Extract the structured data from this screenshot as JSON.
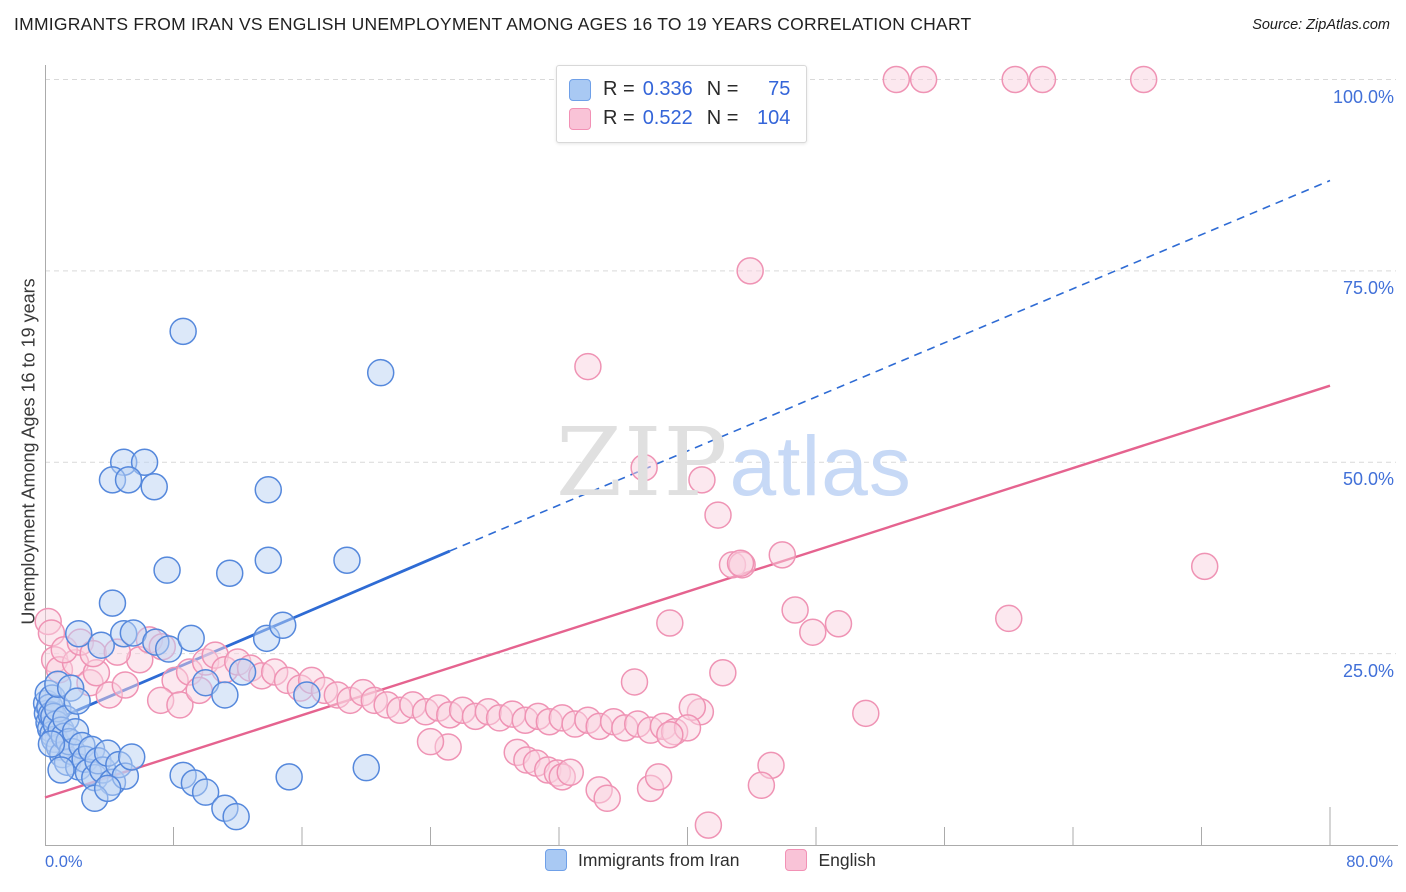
{
  "header": {
    "title": "IMMIGRANTS FROM IRAN VS ENGLISH UNEMPLOYMENT AMONG AGES 16 TO 19 YEARS CORRELATION CHART",
    "source": "Source: ZipAtlas.com"
  },
  "legend_box": {
    "rows": [
      {
        "swatch": "blue",
        "r_label": "R =",
        "r_value": "0.336",
        "n_label": "N =",
        "n_value": "75"
      },
      {
        "swatch": "pink",
        "r_label": "R =",
        "r_value": "0.522",
        "n_label": "N =",
        "n_value": "104"
      }
    ]
  },
  "axes": {
    "y_label": "Unemployment Among Ages 16 to 19 years",
    "y_tick_labels": [
      {
        "text": "100.0%",
        "value": 100
      },
      {
        "text": "75.0%",
        "value": 75
      },
      {
        "text": "50.0%",
        "value": 50
      },
      {
        "text": "25.0%",
        "value": 25
      }
    ],
    "x_left_label": "0.0%",
    "x_right_label": "80.0%"
  },
  "watermark": {
    "zip": "ZIP",
    "atlas": "atlas"
  },
  "bottom_legend": [
    {
      "label": "Immigrants from Iran",
      "swatch": "blue"
    },
    {
      "label": "English",
      "swatch": "pink"
    }
  ],
  "colors": {
    "accent_blue_text": "#3465d9",
    "grid": "#d9d9d9",
    "axis": "#ababab",
    "point_blue_fill": "#b9d2f4",
    "point_blue_stroke": "#5588dc",
    "point_pink_fill": "#fad2e0",
    "point_pink_stroke": "#ef93b4",
    "line_blue": "#2e6bd4",
    "line_pink": "#e5638f"
  },
  "chart_data": {
    "type": "scatter",
    "title": "IMMIGRANTS FROM IRAN VS ENGLISH UNEMPLOYMENT AMONG AGES 16 TO 19 YEARS CORRELATION CHART",
    "xlabel": "",
    "ylabel": "Unemployment Among Ages 16 to 19 years",
    "xlim": [
      0,
      80
    ],
    "ylim": [
      0,
      100
    ],
    "x_unit": "%",
    "y_unit": "%",
    "grid": "dashed-horizontal",
    "gridlines_y": [
      25,
      50,
      75,
      100
    ],
    "legend_position": "top-center",
    "series": [
      {
        "name": "Immigrants from Iran",
        "R": 0.336,
        "N": 75,
        "points": [
          [
            0.1,
            18.5
          ],
          [
            0.15,
            17.2
          ],
          [
            0.2,
            19.8
          ],
          [
            0.25,
            16.0
          ],
          [
            0.3,
            18.0
          ],
          [
            0.35,
            15.2
          ],
          [
            0.4,
            17.0
          ],
          [
            0.45,
            19.2
          ],
          [
            0.5,
            14.5
          ],
          [
            0.55,
            16.8
          ],
          [
            0.6,
            13.8
          ],
          [
            0.7,
            15.8
          ],
          [
            0.8,
            17.8
          ],
          [
            0.9,
            12.8
          ],
          [
            1.0,
            15.0
          ],
          [
            1.1,
            11.8
          ],
          [
            1.2,
            14.2
          ],
          [
            1.3,
            16.5
          ],
          [
            1.4,
            10.8
          ],
          [
            1.5,
            13.5
          ],
          [
            1.7,
            12.2
          ],
          [
            1.9,
            14.8
          ],
          [
            2.1,
            10.2
          ],
          [
            2.3,
            13.0
          ],
          [
            2.5,
            11.2
          ],
          [
            2.7,
            9.5
          ],
          [
            2.9,
            12.5
          ],
          [
            3.1,
            8.8
          ],
          [
            3.3,
            11.0
          ],
          [
            3.6,
            9.8
          ],
          [
            3.9,
            12.0
          ],
          [
            4.2,
            8.2
          ],
          [
            4.6,
            10.5
          ],
          [
            5.0,
            9.0
          ],
          [
            5.4,
            11.5
          ],
          [
            0.8,
            21.0
          ],
          [
            1.6,
            20.5
          ],
          [
            2.0,
            18.8
          ],
          [
            0.4,
            13.2
          ],
          [
            1.0,
            9.8
          ],
          [
            2.1,
            27.6
          ],
          [
            3.5,
            26.1
          ],
          [
            4.9,
            27.6
          ],
          [
            5.5,
            27.7
          ],
          [
            6.9,
            26.5
          ],
          [
            7.7,
            25.6
          ],
          [
            9.1,
            27.0
          ],
          [
            13.8,
            27.0
          ],
          [
            14.8,
            28.7
          ],
          [
            12.3,
            22.6
          ],
          [
            10.0,
            21.2
          ],
          [
            11.2,
            19.6
          ],
          [
            4.2,
            31.6
          ],
          [
            7.6,
            35.9
          ],
          [
            11.5,
            35.5
          ],
          [
            13.9,
            37.2
          ],
          [
            18.8,
            37.2
          ],
          [
            16.3,
            19.6
          ],
          [
            20.0,
            10.1
          ],
          [
            15.2,
            8.9
          ],
          [
            8.6,
            67.1
          ],
          [
            20.9,
            61.7
          ],
          [
            4.9,
            50.0
          ],
          [
            6.2,
            50.0
          ],
          [
            4.2,
            47.7
          ],
          [
            5.2,
            47.7
          ],
          [
            6.8,
            46.8
          ],
          [
            13.9,
            46.4
          ],
          [
            3.1,
            6.1
          ],
          [
            3.9,
            7.4
          ],
          [
            8.6,
            9.1
          ],
          [
            9.3,
            8.1
          ],
          [
            10.0,
            6.9
          ],
          [
            11.2,
            4.8
          ],
          [
            11.9,
            3.7
          ]
        ]
      },
      {
        "name": "English",
        "R": 0.522,
        "N": 104,
        "points": [
          [
            46.1,
            100
          ],
          [
            53.0,
            100
          ],
          [
            54.7,
            100
          ],
          [
            60.4,
            100
          ],
          [
            62.1,
            100
          ],
          [
            68.4,
            100
          ],
          [
            43.9,
            75.0
          ],
          [
            33.8,
            62.5
          ],
          [
            37.3,
            49.3
          ],
          [
            40.9,
            47.7
          ],
          [
            41.9,
            43.1
          ],
          [
            72.2,
            36.4
          ],
          [
            42.8,
            36.6
          ],
          [
            43.4,
            36.6
          ],
          [
            45.9,
            37.9
          ],
          [
            43.3,
            36.8
          ],
          [
            46.7,
            30.7
          ],
          [
            47.8,
            27.8
          ],
          [
            49.4,
            28.9
          ],
          [
            60.0,
            29.6
          ],
          [
            38.9,
            29.0
          ],
          [
            42.2,
            22.5
          ],
          [
            40.8,
            17.4
          ],
          [
            51.1,
            17.2
          ],
          [
            45.2,
            10.4
          ],
          [
            44.6,
            7.8
          ],
          [
            41.3,
            2.6
          ],
          [
            40.3,
            18.0
          ],
          [
            36.7,
            21.3
          ],
          [
            0.2,
            29.2
          ],
          [
            0.4,
            27.7
          ],
          [
            0.6,
            24.2
          ],
          [
            0.9,
            22.9
          ],
          [
            1.9,
            23.8
          ],
          [
            1.2,
            25.5
          ],
          [
            2.8,
            21.2
          ],
          [
            3.2,
            22.5
          ],
          [
            4.0,
            19.6
          ],
          [
            5.0,
            20.9
          ],
          [
            5.9,
            24.2
          ],
          [
            6.5,
            26.8
          ],
          [
            7.3,
            25.9
          ],
          [
            8.1,
            21.5
          ],
          [
            9.0,
            22.6
          ],
          [
            10.0,
            23.9
          ],
          [
            7.2,
            18.9
          ],
          [
            8.4,
            18.3
          ],
          [
            9.6,
            20.2
          ],
          [
            10.6,
            24.8
          ],
          [
            11.2,
            22.9
          ],
          [
            12.0,
            23.9
          ],
          [
            12.8,
            23.1
          ],
          [
            13.5,
            22.1
          ],
          [
            14.3,
            22.6
          ],
          [
            15.1,
            21.5
          ],
          [
            15.9,
            20.5
          ],
          [
            16.6,
            21.5
          ],
          [
            17.4,
            20.2
          ],
          [
            18.2,
            19.6
          ],
          [
            19.0,
            18.9
          ],
          [
            19.8,
            19.9
          ],
          [
            20.5,
            18.9
          ],
          [
            21.3,
            18.3
          ],
          [
            22.1,
            17.6
          ],
          [
            22.9,
            18.3
          ],
          [
            23.7,
            17.4
          ],
          [
            24.5,
            17.9
          ],
          [
            25.2,
            17.0
          ],
          [
            26.0,
            17.6
          ],
          [
            26.8,
            16.8
          ],
          [
            27.6,
            17.4
          ],
          [
            28.3,
            16.6
          ],
          [
            29.1,
            17.1
          ],
          [
            29.9,
            16.3
          ],
          [
            30.7,
            16.8
          ],
          [
            31.4,
            16.1
          ],
          [
            32.2,
            16.6
          ],
          [
            33.0,
            15.8
          ],
          [
            33.8,
            16.3
          ],
          [
            34.5,
            15.5
          ],
          [
            35.4,
            16.1
          ],
          [
            36.1,
            15.3
          ],
          [
            36.9,
            15.8
          ],
          [
            37.7,
            15.0
          ],
          [
            38.5,
            15.5
          ],
          [
            39.2,
            14.8
          ],
          [
            40.0,
            15.3
          ],
          [
            25.1,
            12.8
          ],
          [
            29.4,
            12.1
          ],
          [
            30.0,
            11.1
          ],
          [
            30.6,
            10.7
          ],
          [
            31.3,
            9.8
          ],
          [
            31.9,
            9.4
          ],
          [
            32.2,
            8.9
          ],
          [
            32.7,
            9.5
          ],
          [
            34.5,
            7.2
          ],
          [
            35.0,
            6.1
          ],
          [
            37.7,
            7.4
          ],
          [
            38.2,
            8.9
          ],
          [
            2.2,
            26.5
          ],
          [
            3.0,
            25.0
          ],
          [
            4.5,
            25.2
          ],
          [
            38.9,
            14.4
          ],
          [
            24.0,
            13.5
          ]
        ]
      }
    ],
    "trend_lines": [
      {
        "series": "Immigrants from Iran",
        "style_solid_range": [
          [
            0,
            15.8
          ],
          [
            25.2,
            38.4
          ]
        ],
        "style_dashed_range": [
          [
            25.2,
            38.4
          ],
          [
            80,
            86.8
          ]
        ]
      },
      {
        "series": "English",
        "style_solid_range": [
          [
            0,
            6.2
          ],
          [
            80,
            60.0
          ]
        ]
      }
    ]
  }
}
